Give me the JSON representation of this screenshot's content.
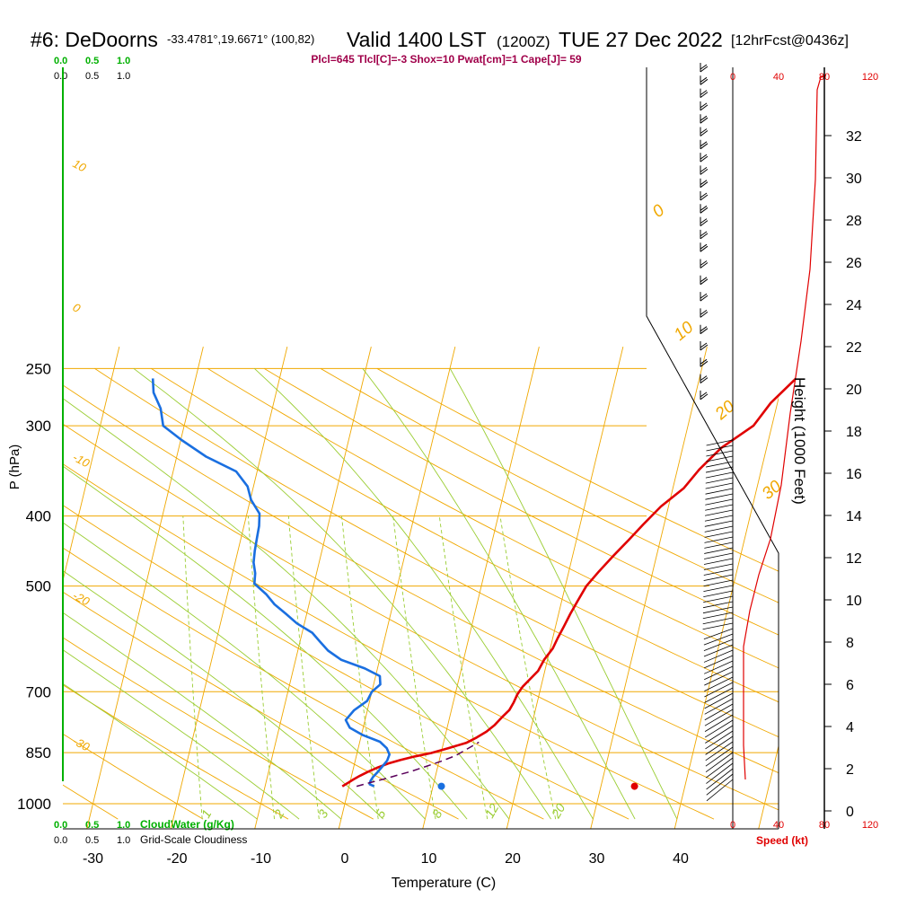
{
  "header": {
    "station": "#6: DeDoorns",
    "coords": "-33.4781°,19.6671° (100,82)",
    "valid": "Valid 1400 LST",
    "utc": "(1200Z)",
    "date": "TUE 27 Dec 2022",
    "forecast": "[12hrFcst@0436z]",
    "indices": "Plcl=645 Tlcl[C]=-3 Shox=10 Pwat[cm]=1 Cape[J]= 59"
  },
  "scales": {
    "cloudwater_ticks": [
      "0.0",
      "0.5",
      "1.0"
    ],
    "cloudiness_ticks": [
      "0.0",
      "0.5",
      "1.0"
    ],
    "cloudwater_label": "CloudWater (g/Kg)",
    "cloudiness_label": "Grid-Scale Cloudiness",
    "speed_ticks": [
      "0",
      "40",
      "80",
      "120"
    ],
    "speed_label": "Speed (kt)"
  },
  "colors": {
    "isotherm": "#f0a800",
    "mixing_ratio": "#9acd32",
    "temperature": "#e00000",
    "dewpoint": "#1a6fe0",
    "parcel": "#5a005a",
    "cloud": "#00b000",
    "speed": "#e00000",
    "indices": "#a0004a"
  },
  "chart_data": {
    "type": "line",
    "xlabel": "Temperature (C)",
    "ylabel": "P (hPa)",
    "y2label": "Height (1000 Feet)",
    "x_ticks": [
      -30,
      -20,
      -10,
      0,
      10,
      20,
      30,
      40
    ],
    "p_ticks": [
      250,
      300,
      400,
      500,
      700,
      850,
      1000
    ],
    "height_ticks": [
      0,
      2,
      4,
      6,
      8,
      10,
      12,
      14,
      16,
      18,
      20,
      22,
      24,
      26,
      28,
      30,
      32
    ],
    "isotherm_labels": [
      "10",
      "0",
      "-10",
      "-20",
      "-30",
      "0",
      "10",
      "20",
      "30"
    ],
    "mixing_ratio_labels": [
      "1",
      "2",
      "3",
      "5",
      "8",
      "12",
      "20"
    ],
    "series": [
      {
        "name": "temperature",
        "points": [
          [
            -0.8,
            946
          ],
          [
            -0.3,
            937
          ],
          [
            0.3,
            926
          ],
          [
            1.0,
            915
          ],
          [
            1.8,
            904
          ],
          [
            2.8,
            892
          ],
          [
            4.0,
            880
          ],
          [
            5.4,
            870
          ],
          [
            7.0,
            860
          ],
          [
            8.8,
            851
          ],
          [
            10.7,
            838
          ],
          [
            12.7,
            824
          ],
          [
            13.8,
            810
          ],
          [
            14.8,
            795
          ],
          [
            15.6,
            778
          ],
          [
            16.2,
            760
          ],
          [
            16.9,
            742
          ],
          [
            17.2,
            724
          ],
          [
            17.4,
            706
          ],
          [
            17.8,
            689
          ],
          [
            18.5,
            672
          ],
          [
            19.2,
            655
          ],
          [
            19.6,
            632
          ],
          [
            20.3,
            610
          ],
          [
            20.6,
            590
          ],
          [
            21.0,
            568
          ],
          [
            21.4,
            546
          ],
          [
            21.9,
            524
          ],
          [
            22.5,
            500
          ],
          [
            23.6,
            477
          ],
          [
            24.8,
            455
          ],
          [
            26.2,
            432
          ],
          [
            27.5,
            411
          ],
          [
            29.1,
            388
          ],
          [
            31.3,
            366
          ],
          [
            32.6,
            345
          ],
          [
            34.6,
            322
          ],
          [
            37.8,
            300
          ],
          [
            39.2,
            279
          ],
          [
            41.5,
            258
          ]
        ]
      },
      {
        "name": "dewpoint",
        "points": [
          [
            3.0,
            946
          ],
          [
            2.4,
            940
          ],
          [
            2.4,
            930
          ],
          [
            2.6,
            918
          ],
          [
            3.0,
            904
          ],
          [
            3.4,
            888
          ],
          [
            3.8,
            872
          ],
          [
            3.9,
            855
          ],
          [
            3.4,
            838
          ],
          [
            2.4,
            821
          ],
          [
            0.2,
            804
          ],
          [
            -1.6,
            785
          ],
          [
            -2.3,
            766
          ],
          [
            -1.6,
            743
          ],
          [
            -0.3,
            721
          ],
          [
            0.0,
            700
          ],
          [
            0.8,
            684
          ],
          [
            0.5,
            666
          ],
          [
            -1.5,
            650
          ],
          [
            -4.6,
            632
          ],
          [
            -6.4,
            614
          ],
          [
            -7.6,
            597
          ],
          [
            -8.8,
            580
          ],
          [
            -10.9,
            563
          ],
          [
            -12.5,
            546
          ],
          [
            -14.1,
            530
          ],
          [
            -15.4,
            513
          ],
          [
            -17.1,
            496
          ],
          [
            -17.3,
            480
          ],
          [
            -17.8,
            464
          ],
          [
            -18.0,
            447
          ],
          [
            -18.1,
            430
          ],
          [
            -18.2,
            413
          ],
          [
            -18.5,
            397
          ],
          [
            -19.9,
            380
          ],
          [
            -20.7,
            364
          ],
          [
            -22.5,
            347
          ],
          [
            -26.5,
            331
          ],
          [
            -29.9,
            314
          ],
          [
            -32.5,
            300
          ],
          [
            -33.3,
            284
          ],
          [
            -34.6,
            270
          ],
          [
            -35.1,
            258
          ]
        ]
      },
      {
        "name": "parcel",
        "points": [
          [
            0.9,
            946
          ],
          [
            2.4,
            935
          ],
          [
            4.0,
            924
          ],
          [
            5.6,
            912
          ],
          [
            7.0,
            902
          ],
          [
            8.6,
            888
          ],
          [
            10.2,
            874
          ],
          [
            11.8,
            858
          ],
          [
            13.0,
            840
          ],
          [
            14.2,
            822
          ]
        ]
      }
    ],
    "surface_points": [
      {
        "name": "surface-dewpoint",
        "x": 11,
        "p": 946
      },
      {
        "name": "surface-temperature",
        "x": 34,
        "p": 946
      }
    ]
  }
}
